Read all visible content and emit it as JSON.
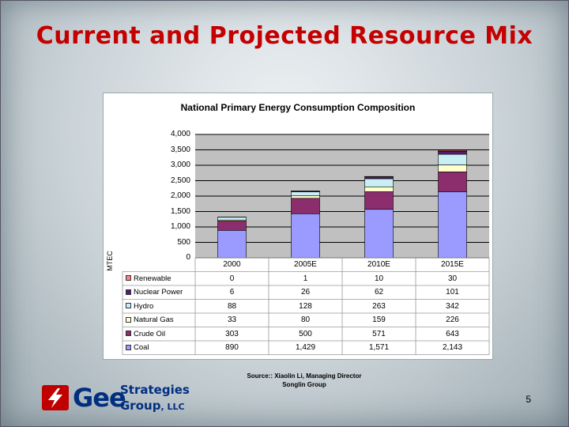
{
  "slide": {
    "title": "Current and Projected Resource Mix",
    "source_line1": "Source:: Xiaolin Li, Managing Director",
    "source_line2": "Songlin Group",
    "page_number": "5"
  },
  "logo": {
    "name_part1": "Gee",
    "name_part2": "Strategies",
    "name_part3": "Group",
    "suffix": ", LLC"
  },
  "colors": {
    "coal": "#9a9aff",
    "crude_oil": "#8c2e6e",
    "natural_gas": "#ffffcc",
    "hydro": "#c8f0f4",
    "nuclear_power": "#5a1a72",
    "renewable": "#ff8080",
    "title": "#c40000"
  },
  "chart_data": {
    "type": "bar",
    "stacked": true,
    "title": "National Primary Energy Consumption Composition",
    "ylabel": "MTEC",
    "ylim": [
      0,
      4000
    ],
    "yticks": [
      "0",
      "500",
      "1,000",
      "1,500",
      "2,000",
      "2,500",
      "3,000",
      "3,500",
      "4,000"
    ],
    "categories": [
      "2000",
      "2005E",
      "2010E",
      "2015E"
    ],
    "series": [
      {
        "name": "Coal",
        "key": "coal",
        "values": [
          890,
          1429,
          1571,
          2143
        ],
        "labels": [
          "890",
          "1,429",
          "1,571",
          "2,143"
        ]
      },
      {
        "name": "Crude Oil",
        "key": "crude_oil",
        "values": [
          303,
          500,
          571,
          643
        ],
        "labels": [
          "303",
          "500",
          "571",
          "643"
        ]
      },
      {
        "name": "Natural Gas",
        "key": "natural_gas",
        "values": [
          33,
          80,
          159,
          226
        ],
        "labels": [
          "33",
          "80",
          "159",
          "226"
        ]
      },
      {
        "name": "Hydro",
        "key": "hydro",
        "values": [
          88,
          128,
          263,
          342
        ],
        "labels": [
          "88",
          "128",
          "263",
          "342"
        ]
      },
      {
        "name": "Nuclear Power",
        "key": "nuclear_power",
        "values": [
          6,
          26,
          62,
          101
        ],
        "labels": [
          "6",
          "26",
          "62",
          "101"
        ]
      },
      {
        "name": "Renewable",
        "key": "renewable",
        "values": [
          0,
          1,
          10,
          30
        ],
        "labels": [
          "0",
          "1",
          "10",
          "30"
        ]
      }
    ]
  }
}
